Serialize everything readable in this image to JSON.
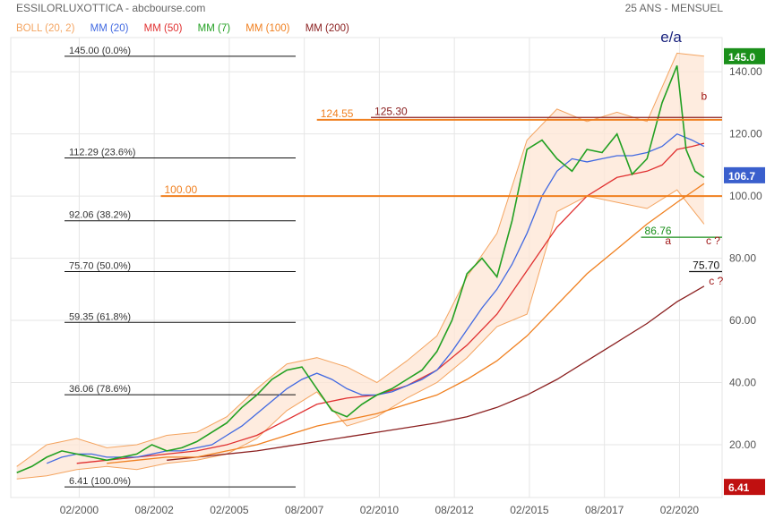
{
  "header": {
    "title": "ESSILORLUXOTTICA - abcbourse.com",
    "period": "25 ANS - MENSUEL"
  },
  "legend": [
    {
      "label": "BOLL (20, 2)",
      "color": "#f4a460"
    },
    {
      "label": "MM (20)",
      "color": "#4169e1"
    },
    {
      "label": "MM (50)",
      "color": "#e03030"
    },
    {
      "label": "MM (7)",
      "color": "#22a022"
    },
    {
      "label": "MM (100)",
      "color": "#f08020"
    },
    {
      "label": "MM (200)",
      "color": "#8b2020"
    }
  ],
  "chart_data": {
    "type": "line",
    "x_ticks": [
      "02/2000",
      "08/2002",
      "02/2005",
      "08/2007",
      "02/2010",
      "08/2012",
      "02/2015",
      "08/2017",
      "02/2020"
    ],
    "y_ticks": [
      "20.00",
      "40.00",
      "60.00",
      "80.00",
      "100.00",
      "120.00",
      "140.00"
    ],
    "x_tick_values": [
      2000.08,
      2002.58,
      2005.08,
      2007.58,
      2010.08,
      2012.58,
      2015.08,
      2017.58,
      2020.08
    ],
    "y_tick_values": [
      20,
      40,
      60,
      80,
      100,
      120,
      140
    ],
    "xlim": [
      1997.8,
      2021.5
    ],
    "ylim": [
      3,
      151
    ],
    "price_badges": [
      {
        "label": "145.0",
        "value": 145.0,
        "color": "#1a8f1a"
      },
      {
        "label": "106.7",
        "value": 106.7,
        "color": "#3a5fcd"
      },
      {
        "label": "6.41",
        "value": 6.41,
        "color": "#c01010"
      }
    ],
    "fibonacci": [
      {
        "label": "145.00  (0.0%)",
        "value": 145.0
      },
      {
        "label": "112.29  (23.6%)",
        "value": 112.29
      },
      {
        "label": "92.06  (38.2%)",
        "value": 92.06
      },
      {
        "label": "75.70  (50.0%)",
        "value": 75.7
      },
      {
        "label": "59.35  (61.8%)",
        "value": 59.35
      },
      {
        "label": "36.06  (78.6%)",
        "value": 36.06
      },
      {
        "label": "6.41  (100.0%)",
        "value": 6.41
      }
    ],
    "levels": [
      {
        "label": "124.55",
        "value": 124.55,
        "x_start": 2008.0,
        "color": "#f08020"
      },
      {
        "label": "125.30",
        "value": 125.3,
        "x_start": 2009.8,
        "color": "#8b2020"
      },
      {
        "label": "100.00",
        "value": 100.0,
        "x_start": 2002.8,
        "color": "#f08020"
      },
      {
        "label": "86.76",
        "value": 86.76,
        "x_start": 2018.8,
        "color": "#1a8f1a"
      },
      {
        "label": "75.70",
        "value": 75.7,
        "x_start": 2020.4,
        "color": "#111111"
      }
    ],
    "annotations": [
      {
        "text": "e/a",
        "x": 2019.8,
        "y": 149.5,
        "color": "#1a237e"
      },
      {
        "text": "b",
        "x": 2020.9,
        "y": 131.0,
        "color": "#a01818"
      },
      {
        "text": "a",
        "x": 2019.7,
        "y": 84.5,
        "color": "#a01818"
      },
      {
        "text": "c ?",
        "x": 2021.2,
        "y": 84.5,
        "color": "#a01818"
      },
      {
        "text": "c ?",
        "x": 2021.3,
        "y": 71.5,
        "color": "#a01818"
      }
    ],
    "series": [
      {
        "name": "MM (7)",
        "color": "#22a022",
        "x": [
          1998,
          1998.5,
          1999,
          1999.5,
          2000,
          2000.5,
          2001,
          2001.5,
          2002,
          2002.5,
          2003,
          2003.5,
          2004,
          2004.5,
          2005,
          2005.5,
          2006,
          2006.5,
          2007,
          2007.5,
          2008,
          2008.5,
          2009,
          2009.5,
          2010,
          2010.5,
          2011,
          2011.5,
          2012,
          2012.5,
          2013,
          2013.5,
          2014,
          2014.5,
          2015,
          2015.5,
          2016,
          2016.5,
          2017,
          2017.5,
          2018,
          2018.5,
          2019,
          2019.5,
          2020,
          2020.3,
          2020.6,
          2020.9
        ],
        "values": [
          11,
          13,
          16,
          18,
          17,
          16,
          15,
          16,
          17,
          20,
          18,
          19,
          21,
          24,
          27,
          32,
          36,
          41,
          44,
          45,
          38,
          31,
          29,
          33,
          36,
          38,
          41,
          44,
          50,
          60,
          75,
          80,
          74,
          92,
          115,
          118,
          112,
          108,
          115,
          114,
          120,
          107,
          112,
          130,
          142,
          115,
          108,
          106
        ]
      },
      {
        "name": "MM (20)",
        "color": "#4169e1",
        "x": [
          1999,
          1999.5,
          2000,
          2000.5,
          2001,
          2001.5,
          2002,
          2002.5,
          2003,
          2003.5,
          2004,
          2004.5,
          2005,
          2005.5,
          2006,
          2006.5,
          2007,
          2007.5,
          2008,
          2008.5,
          2009,
          2009.5,
          2010,
          2010.5,
          2011,
          2011.5,
          2012,
          2012.5,
          2013,
          2013.5,
          2014,
          2014.5,
          2015,
          2015.5,
          2016,
          2016.5,
          2017,
          2017.5,
          2018,
          2018.5,
          2019,
          2019.5,
          2020,
          2020.5,
          2020.9
        ],
        "values": [
          14,
          16,
          17,
          17,
          16,
          16,
          16,
          17,
          18,
          18,
          19,
          20,
          23,
          26,
          30,
          34,
          38,
          41,
          43,
          41,
          38,
          36,
          36,
          37,
          39,
          41,
          44,
          50,
          57,
          64,
          70,
          78,
          88,
          100,
          108,
          112,
          111,
          112,
          113,
          113,
          114,
          116,
          120,
          118,
          116
        ]
      },
      {
        "name": "MM (50)",
        "color": "#e03030",
        "x": [
          2000,
          2001,
          2002,
          2003,
          2004,
          2005,
          2006,
          2007,
          2008,
          2009,
          2010,
          2011,
          2012,
          2013,
          2014,
          2015,
          2016,
          2017,
          2018,
          2019,
          2019.5,
          2020,
          2020.5,
          2020.9
        ],
        "values": [
          14,
          15,
          16,
          17,
          18,
          20,
          23,
          28,
          33,
          35,
          36,
          39,
          44,
          52,
          62,
          76,
          90,
          100,
          106,
          108,
          110,
          115,
          116,
          117
        ]
      },
      {
        "name": "MM (100)",
        "color": "#f08020",
        "x": [
          2001,
          2002,
          2003,
          2004,
          2005,
          2006,
          2007,
          2008,
          2009,
          2010,
          2011,
          2012,
          2013,
          2014,
          2015,
          2016,
          2017,
          2018,
          2019,
          2020,
          2020.9
        ],
        "values": [
          14,
          15,
          16,
          16,
          18,
          20,
          23,
          26,
          28,
          30,
          33,
          36,
          41,
          47,
          55,
          65,
          75,
          83,
          91,
          98,
          104
        ]
      },
      {
        "name": "MM (200)",
        "color": "#8b2020",
        "x": [
          2003,
          2004,
          2005,
          2006,
          2007,
          2008,
          2009,
          2010,
          2011,
          2012,
          2013,
          2014,
          2015,
          2016,
          2017,
          2018,
          2019,
          2020,
          2020.9
        ],
        "values": [
          15,
          16,
          17,
          18,
          19.5,
          21,
          22.5,
          24,
          25.5,
          27,
          29,
          32,
          36,
          41,
          47,
          53,
          59,
          66,
          71
        ]
      }
    ],
    "bands": {
      "name": "BOLL (20, 2)",
      "color": "#f4a460",
      "x": [
        1998,
        1999,
        2000,
        2001,
        2002,
        2003,
        2004,
        2005,
        2006,
        2007,
        2008,
        2009,
        2010,
        2011,
        2012,
        2013,
        2014,
        2015,
        2016,
        2017,
        2018,
        2019,
        2020,
        2020.9
      ],
      "upper": [
        13,
        20,
        22,
        19,
        20,
        23,
        24,
        29,
        38,
        46,
        48,
        45,
        40,
        47,
        55,
        74,
        88,
        118,
        128,
        124,
        127,
        124,
        146,
        145
      ],
      "lower": [
        9,
        10,
        12,
        13,
        12,
        14,
        15,
        17,
        22,
        31,
        37,
        26,
        29,
        35,
        40,
        48,
        58,
        62,
        95,
        100,
        98,
        96,
        102,
        91
      ]
    }
  }
}
